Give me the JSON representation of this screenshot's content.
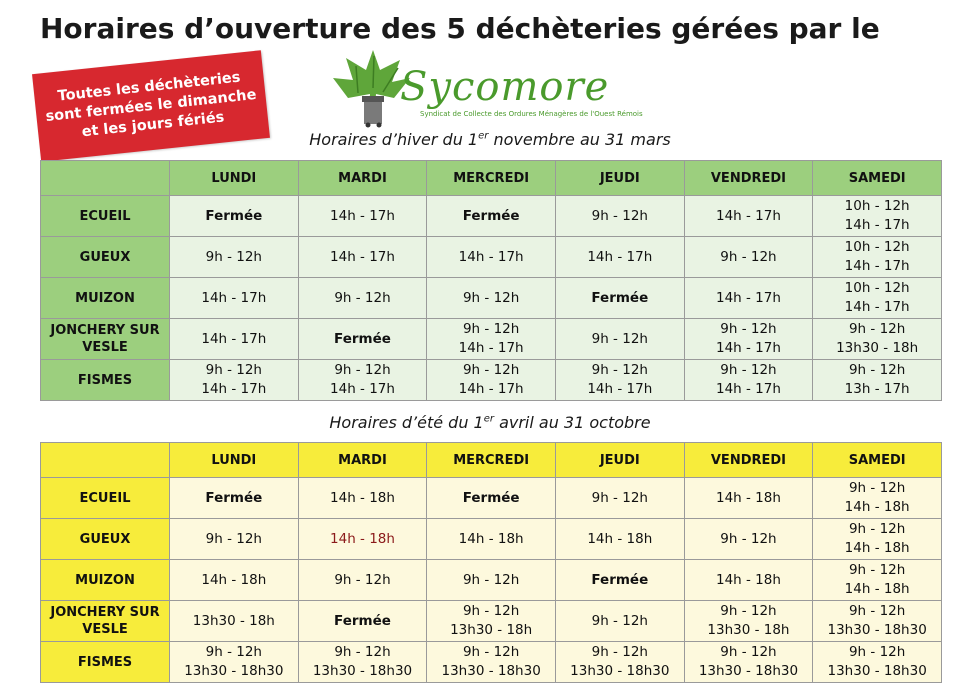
{
  "title": "Horaires d’ouverture des 5 déchèteries gérées par le",
  "banner": [
    "Toutes les déchèteries",
    "sont fermées le dimanche",
    "et les jours fériés"
  ],
  "logo": {
    "name": "Sycomore",
    "subtitle": "Syndicat de Collecte des Ordures Ménagères de l'Ouest Rémois"
  },
  "winter": {
    "heading_pre": "Horaires d’hiver du 1",
    "heading_sup": "er",
    "heading_post": " novembre au 31 mars",
    "days": [
      "LUNDI",
      "MARDI",
      "MERCREDI",
      "JEUDI",
      "VENDREDI",
      "SAMEDI"
    ],
    "rows": [
      {
        "name": "ECUEIL",
        "cells": [
          "Fermée",
          "14h - 17h",
          "Fermée",
          "9h - 12h",
          "14h - 17h",
          "10h - 12h\n14h - 17h"
        ]
      },
      {
        "name": "GUEUX",
        "cells": [
          "9h - 12h",
          "14h - 17h",
          "14h - 17h",
          "14h - 17h",
          "9h - 12h",
          "10h - 12h\n14h - 17h"
        ]
      },
      {
        "name": "MUIZON",
        "cells": [
          "14h - 17h",
          "9h - 12h",
          "9h - 12h",
          "Fermée",
          "14h - 17h",
          "10h - 12h\n14h - 17h"
        ]
      },
      {
        "name": "JONCHERY SUR\nVESLE",
        "cells": [
          "14h - 17h",
          "Fermée",
          "9h - 12h\n14h - 17h",
          "9h - 12h",
          "9h - 12h\n14h - 17h",
          "9h - 12h\n13h30 - 18h"
        ]
      },
      {
        "name": "FISMES",
        "cells": [
          "9h - 12h\n14h - 17h",
          "9h - 12h\n14h - 17h",
          "9h - 12h\n14h - 17h",
          "9h - 12h\n14h - 17h",
          "9h - 12h\n14h - 17h",
          "9h - 12h\n13h - 17h"
        ]
      }
    ]
  },
  "summer": {
    "heading_pre": "Horaires d’été du 1",
    "heading_sup": "er",
    "heading_post": " avril au 31 octobre",
    "days": [
      "LUNDI",
      "MARDI",
      "MERCREDI",
      "JEUDI",
      "VENDREDI",
      "SAMEDI"
    ],
    "rows": [
      {
        "name": "ECUEIL",
        "cells": [
          "Fermée",
          "14h - 18h",
          "Fermée",
          "9h - 12h",
          "14h - 18h",
          "9h - 12h\n14h - 18h"
        ]
      },
      {
        "name": "GUEUX",
        "cells": [
          "9h - 12h",
          "14h - 18h",
          "14h - 18h",
          "14h - 18h",
          "9h - 12h",
          "9h - 12h\n14h - 18h"
        ]
      },
      {
        "name": "MUIZON",
        "cells": [
          "14h - 18h",
          "9h - 12h",
          "9h - 12h",
          "Fermée",
          "14h - 18h",
          "9h - 12h\n14h - 18h"
        ]
      },
      {
        "name": "JONCHERY SUR\nVESLE",
        "cells": [
          "13h30 - 18h",
          "Fermée",
          "9h - 12h\n13h30 - 18h",
          "9h - 12h",
          "9h - 12h\n13h30 - 18h",
          "9h - 12h\n13h30 - 18h30"
        ]
      },
      {
        "name": "FISMES",
        "cells": [
          "9h - 12h\n13h30 - 18h30",
          "9h - 12h\n13h30 - 18h30",
          "9h - 12h\n13h30 - 18h30",
          "9h - 12h\n13h30 - 18h30",
          "9h - 12h\n13h30 - 18h30",
          "9h - 12h\n13h30 - 18h30"
        ]
      }
    ]
  },
  "colors": {
    "winter_header": "#9ccf7e",
    "winter_cell": "#e9f3e3",
    "summer_header": "#f7ec3b",
    "summer_cell": "#fdf9dd",
    "banner": "#d7282f",
    "logo": "#4a9a2c",
    "highlight": "#8b1a1a"
  },
  "highlight": {
    "table": "summer",
    "row": 1,
    "col": 1
  },
  "closed_label": "Fermée"
}
